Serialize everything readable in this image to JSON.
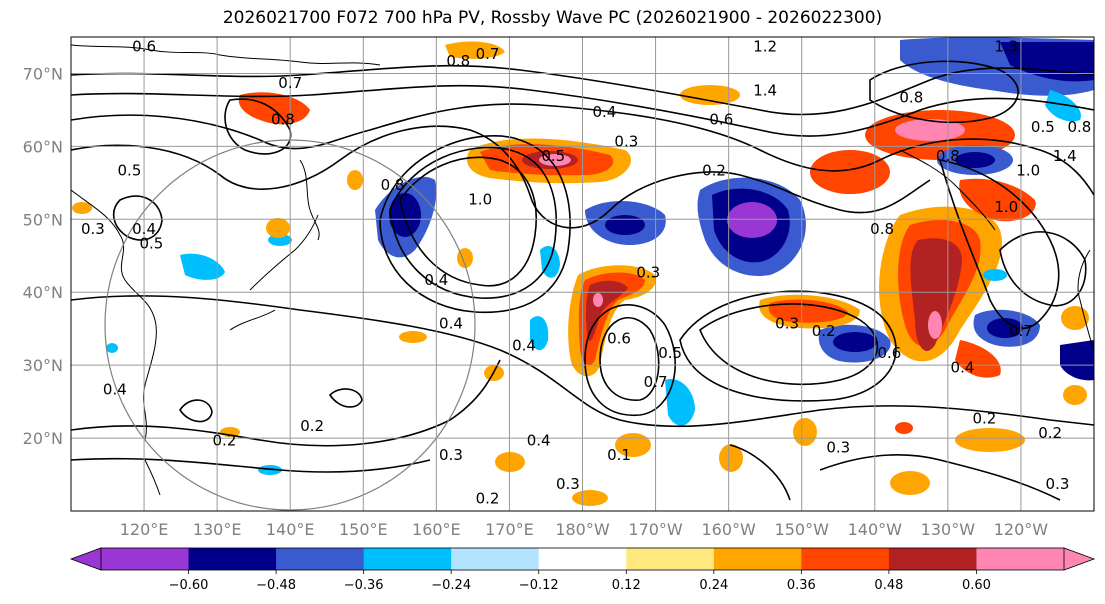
{
  "title": "2026021700 F072 700 hPa PV, Rossby Wave PC (2026021900 - 2026022300)",
  "map": {
    "lon_range": [
      110,
      250
    ],
    "lat_range": [
      10,
      75
    ],
    "lat_ticks": [
      {
        "lat": 70,
        "label": "70°N"
      },
      {
        "lat": 60,
        "label": "60°N"
      },
      {
        "lat": 50,
        "label": "50°N"
      },
      {
        "lat": 40,
        "label": "40°N"
      },
      {
        "lat": 30,
        "label": "30°N"
      },
      {
        "lat": 20,
        "label": "20°N"
      }
    ],
    "lon_ticks": [
      {
        "lon": 120,
        "label": "120°E"
      },
      {
        "lon": 130,
        "label": "130°E"
      },
      {
        "lon": 140,
        "label": "140°E"
      },
      {
        "lon": 150,
        "label": "150°E"
      },
      {
        "lon": 160,
        "label": "160°E"
      },
      {
        "lon": 170,
        "label": "170°E"
      },
      {
        "lon": 180,
        "label": "180°W"
      },
      {
        "lon": 190,
        "label": "170°W"
      },
      {
        "lon": 200,
        "label": "160°W"
      },
      {
        "lon": 210,
        "label": "150°W"
      },
      {
        "lon": 220,
        "label": "140°W"
      },
      {
        "lon": 230,
        "label": "130°W"
      },
      {
        "lon": 240,
        "label": "120°W"
      }
    ],
    "contour_labels": [
      {
        "text": "0.6",
        "lon": 120,
        "lat": 73
      },
      {
        "text": "0.7",
        "lon": 140,
        "lat": 68
      },
      {
        "text": "0.8",
        "lon": 163,
        "lat": 71
      },
      {
        "text": "0.7",
        "lon": 167,
        "lat": 72
      },
      {
        "text": "1.2",
        "lon": 205,
        "lat": 73
      },
      {
        "text": "1.3",
        "lon": 238,
        "lat": 73
      },
      {
        "text": "1.4",
        "lon": 205,
        "lat": 67
      },
      {
        "text": "0.8",
        "lon": 225,
        "lat": 66
      },
      {
        "text": "0.4",
        "lon": 183,
        "lat": 64
      },
      {
        "text": "0.3",
        "lon": 186,
        "lat": 60
      },
      {
        "text": "0.6",
        "lon": 199,
        "lat": 63
      },
      {
        "text": "0.5",
        "lon": 176,
        "lat": 58
      },
      {
        "text": "0.2",
        "lon": 198,
        "lat": 56
      },
      {
        "text": "0.8",
        "lon": 230,
        "lat": 58
      },
      {
        "text": "0.5",
        "lon": 243,
        "lat": 62
      },
      {
        "text": "0.8",
        "lon": 248,
        "lat": 62
      },
      {
        "text": "1.0",
        "lon": 241,
        "lat": 56
      },
      {
        "text": "1.4",
        "lon": 246,
        "lat": 58
      },
      {
        "text": "0.8",
        "lon": 154,
        "lat": 54
      },
      {
        "text": "1.0",
        "lon": 166,
        "lat": 52
      },
      {
        "text": "0.8",
        "lon": 139,
        "lat": 63
      },
      {
        "text": "0.5",
        "lon": 118,
        "lat": 56
      },
      {
        "text": "0.3",
        "lon": 113,
        "lat": 48
      },
      {
        "text": "0.4",
        "lon": 120,
        "lat": 48
      },
      {
        "text": "0.5",
        "lon": 121,
        "lat": 46
      },
      {
        "text": "0.8",
        "lon": 221,
        "lat": 48
      },
      {
        "text": "1.0",
        "lon": 238,
        "lat": 51
      },
      {
        "text": "0.3",
        "lon": 189,
        "lat": 42
      },
      {
        "text": "0.4",
        "lon": 160,
        "lat": 41
      },
      {
        "text": "0.4",
        "lon": 162,
        "lat": 35
      },
      {
        "text": "0.4",
        "lon": 172,
        "lat": 32
      },
      {
        "text": "0.6",
        "lon": 185,
        "lat": 33
      },
      {
        "text": "0.5",
        "lon": 192,
        "lat": 31
      },
      {
        "text": "0.7",
        "lon": 190,
        "lat": 27
      },
      {
        "text": "0.3",
        "lon": 208,
        "lat": 35
      },
      {
        "text": "0.2",
        "lon": 213,
        "lat": 34
      },
      {
        "text": "0.7",
        "lon": 240,
        "lat": 34
      },
      {
        "text": "0.6",
        "lon": 222,
        "lat": 31
      },
      {
        "text": "0.4",
        "lon": 232,
        "lat": 29
      },
      {
        "text": "0.4",
        "lon": 116,
        "lat": 26
      },
      {
        "text": "0.2",
        "lon": 143,
        "lat": 21
      },
      {
        "text": "0.2",
        "lon": 131,
        "lat": 19
      },
      {
        "text": "0.3",
        "lon": 162,
        "lat": 17
      },
      {
        "text": "0.4",
        "lon": 174,
        "lat": 19
      },
      {
        "text": "0.1",
        "lon": 185,
        "lat": 17
      },
      {
        "text": "0.3",
        "lon": 178,
        "lat": 13
      },
      {
        "text": "0.2",
        "lon": 167,
        "lat": 11
      },
      {
        "text": "0.3",
        "lon": 215,
        "lat": 18
      },
      {
        "text": "0.2",
        "lon": 235,
        "lat": 22
      },
      {
        "text": "0.2",
        "lon": 244,
        "lat": 20
      },
      {
        "text": "0.3",
        "lon": 245,
        "lat": 13
      }
    ]
  },
  "colorbar": {
    "extend": "both",
    "boundaries": [
      -0.72,
      -0.6,
      -0.48,
      -0.36,
      -0.24,
      -0.12,
      0.12,
      0.24,
      0.36,
      0.48,
      0.6,
      0.72
    ],
    "colors": [
      "#9a37d4",
      "#00008b",
      "#3a5bd0",
      "#00bfff",
      "#b3e3ff",
      "#ffffff",
      "#ffe880",
      "#ffa500",
      "#ff4500",
      "#b22222",
      "#ff85b3"
    ],
    "extend_low_color": "#9a37d4",
    "extend_high_color": "#ff85b3",
    "tick_labels": [
      "−0.60",
      "−0.48",
      "−0.36",
      "−0.24",
      "−0.12",
      "0.12",
      "0.24",
      "0.36",
      "0.48",
      "0.60"
    ]
  },
  "colors": {
    "frame": "#000000",
    "grid": "#999999",
    "tick_label": "#808080"
  }
}
